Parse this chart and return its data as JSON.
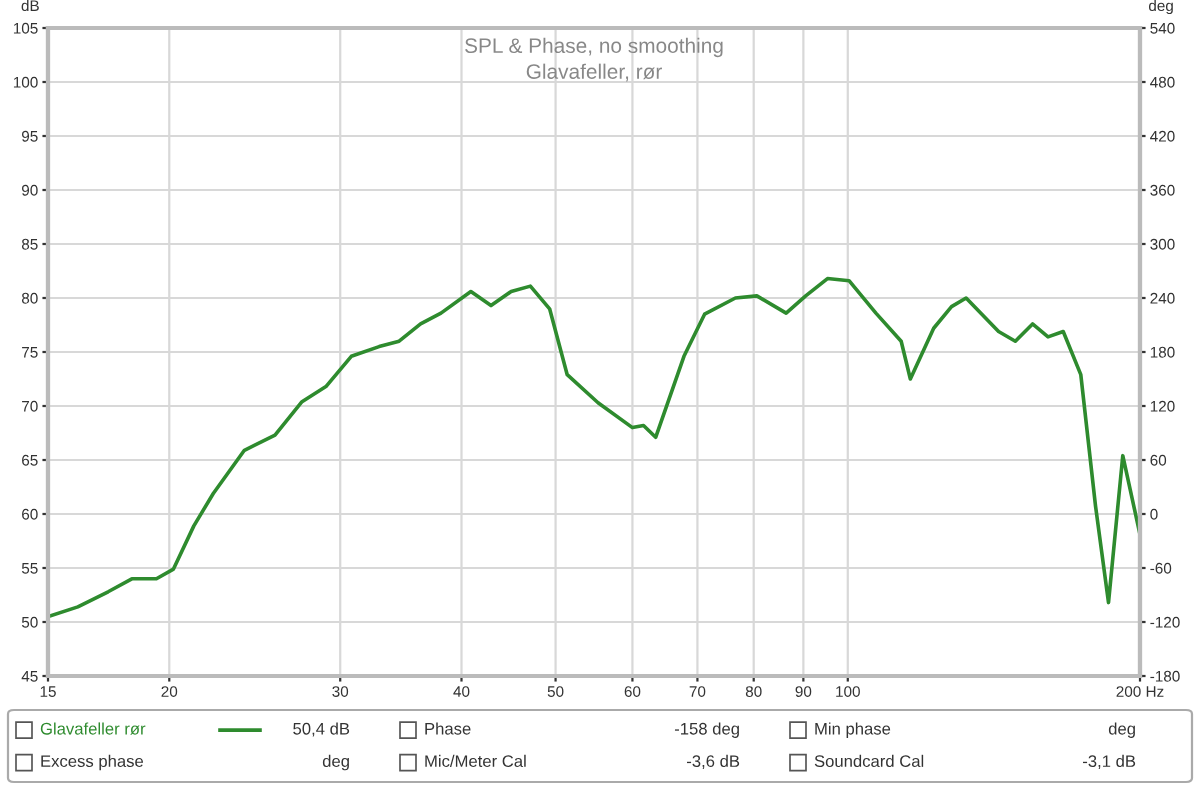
{
  "chart_data": {
    "type": "line",
    "title": "SPL & Phase, no smoothing",
    "subtitle": "Glavafeller, rør",
    "ylabel": "dB",
    "y2label": "deg",
    "log": "x",
    "xlim": [
      15,
      200
    ],
    "xticks": [
      15,
      20,
      30,
      40,
      50,
      60,
      70,
      80,
      90,
      100,
      {
        "value": 200,
        "label": "200 Hz"
      }
    ],
    "ylim": [
      45,
      105
    ],
    "yticks": [
      45,
      50,
      55,
      60,
      65,
      70,
      75,
      80,
      85,
      90,
      95,
      100,
      105
    ],
    "y2lim": [
      -180,
      540
    ],
    "y2ticks": [
      -180,
      -120,
      -60,
      0,
      60,
      120,
      180,
      240,
      300,
      360,
      420,
      480,
      540
    ],
    "grid": true,
    "legend": "bottom",
    "series": [
      {
        "name": "Glavafeller rør",
        "color": "#2e8b2e",
        "x": [
          15,
          16.1,
          17.3,
          18.3,
          19.4,
          20.2,
          21.2,
          22.2,
          23.9,
          25.7,
          27.4,
          29.0,
          30.8,
          32.9,
          34.5,
          36.3,
          38.1,
          40.9,
          42.9,
          45.0,
          47.1,
          49.3,
          51.4,
          55.3,
          60.0,
          61.6,
          63.4,
          67.8,
          71.2,
          76.6,
          80.6,
          86.4,
          90.5,
          95.3,
          100.3,
          106.9,
          113.5,
          116,
          122.6,
          127.9,
          132.4,
          143,
          148.8,
          155,
          160.8,
          166.7,
          173.8,
          180,
          185.6,
          192,
          200
        ],
        "values": [
          50.5,
          51.4,
          52.8,
          54.0,
          54.0,
          54.9,
          58.9,
          61.9,
          65.9,
          67.3,
          70.4,
          71.8,
          74.6,
          75.5,
          76.0,
          77.6,
          78.6,
          80.6,
          79.3,
          80.6,
          81.1,
          79.0,
          72.9,
          70.3,
          68.0,
          68.2,
          67.1,
          74.6,
          78.5,
          80.0,
          80.2,
          78.6,
          80.2,
          81.8,
          81.6,
          78.6,
          76.0,
          72.5,
          77.2,
          79.2,
          80.0,
          76.9,
          76.0,
          77.6,
          76.4,
          76.9,
          72.9,
          60.7,
          51.8,
          65.4,
          58.1
        ]
      }
    ],
    "annotations": [
      "50,4 dB",
      "Phase",
      "-158 deg",
      "Min phase",
      "deg",
      "Excess phase",
      "deg",
      "Mic/Meter Cal",
      "-3,6 dB",
      "Soundcard Cal",
      "-3,1 dB"
    ]
  }
}
